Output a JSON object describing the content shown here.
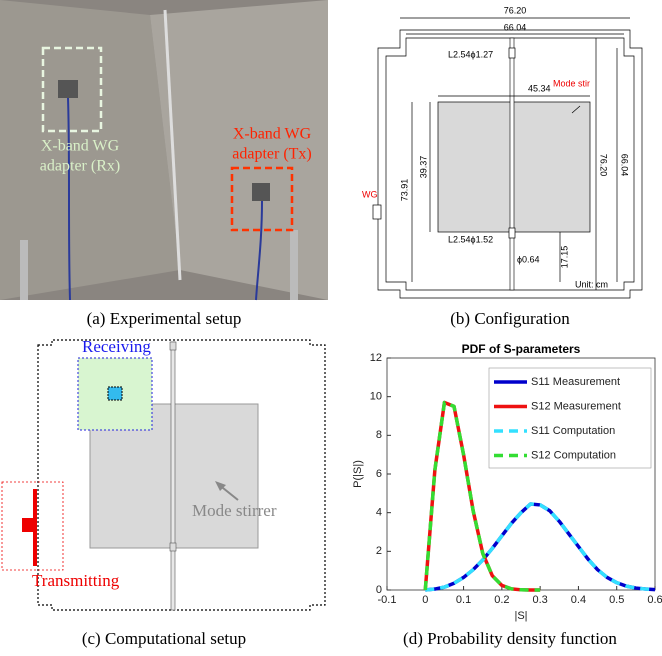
{
  "panel_a": {
    "caption": "(a) Experimental setup",
    "rx_label": [
      "X-band WG",
      "adapter (Rx)"
    ],
    "tx_label": [
      "X-band WG",
      "adapter (Tx)"
    ]
  },
  "panel_b": {
    "caption": "(b) Configuration",
    "labels": [
      "76.20",
      "66.04",
      "L2.54ϕ1.27",
      "Mode stir",
      "45.34",
      "73.91",
      "39.37",
      "76.20",
      "66.04",
      "WG",
      "L2.54ϕ1.52",
      "ϕ0.64",
      "17.15",
      "Unit: cm"
    ]
  },
  "panel_c": {
    "caption": "(c) Computational setup",
    "receiving": "Receiving",
    "stirrer": "Mode stirrer",
    "transmitting": "Transmitting"
  },
  "panel_d": {
    "caption": "(d) Probability density function"
  },
  "chart_data": {
    "type": "line",
    "title": "PDF of S-parameters",
    "x_label": "|S|",
    "y_label": "P(|S|)",
    "x": [
      0,
      0.025,
      0.05,
      0.075,
      0.1,
      0.125,
      0.15,
      0.175,
      0.2,
      0.225,
      0.25,
      0.275,
      0.3,
      0.325,
      0.35,
      0.375,
      0.4,
      0.425,
      0.45,
      0.475,
      0.5,
      0.525,
      0.55,
      0.575,
      0.6
    ],
    "series": [
      {
        "name": "S11 Measurement",
        "color": "#0000cc",
        "dashed": false,
        "values": [
          0,
          0.05,
          0.15,
          0.35,
          0.65,
          1.05,
          1.55,
          2.15,
          2.8,
          3.45,
          4.0,
          4.45,
          4.4,
          4.1,
          3.55,
          2.9,
          2.25,
          1.6,
          1.05,
          0.65,
          0.38,
          0.2,
          0.1,
          0.05,
          0.02
        ]
      },
      {
        "name": "S12 Measurement",
        "color": "#ee1111",
        "dashed": false,
        "values": [
          0,
          6.2,
          9.7,
          9.5,
          7.0,
          4.1,
          1.9,
          0.74,
          0.24,
          0.06,
          0.01,
          0,
          0,
          null,
          null,
          null,
          null,
          null,
          null,
          null,
          null,
          null,
          null,
          null,
          null
        ]
      },
      {
        "name": "S11 Computation",
        "color": "#33e0ff",
        "dashed": true,
        "values": [
          0,
          0.05,
          0.15,
          0.35,
          0.65,
          1.05,
          1.55,
          2.15,
          2.8,
          3.45,
          4.0,
          4.45,
          4.4,
          4.1,
          3.55,
          2.9,
          2.25,
          1.6,
          1.05,
          0.65,
          0.38,
          0.2,
          0.1,
          0.05,
          0.02
        ]
      },
      {
        "name": "S12 Computation",
        "color": "#33dd33",
        "dashed": true,
        "values": [
          0,
          6.2,
          9.7,
          9.5,
          7.0,
          4.1,
          1.9,
          0.74,
          0.24,
          0.06,
          0.01,
          0,
          0,
          null,
          null,
          null,
          null,
          null,
          null,
          null,
          null,
          null,
          null,
          null,
          null
        ]
      }
    ],
    "xlim": [
      -0.1,
      0.6
    ],
    "xticks": [
      -0.1,
      0,
      0.1,
      0.2,
      0.3,
      0.4,
      0.5,
      0.6
    ],
    "ylim": [
      0,
      12
    ],
    "yticks": [
      0,
      2,
      4,
      6,
      8,
      10,
      12
    ],
    "legend": "upper-right"
  }
}
